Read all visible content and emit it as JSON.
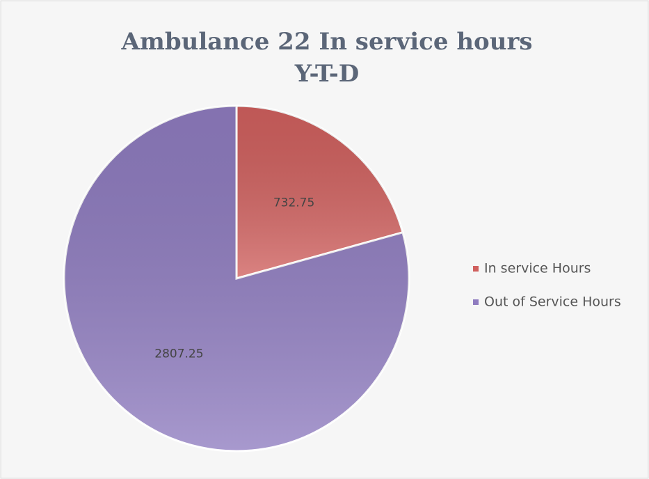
{
  "chart_data": {
    "type": "pie",
    "title": [
      "Ambulance 22 In service hours",
      "Y-T-D"
    ],
    "categories": [
      "In service Hours",
      "Out of Service Hours"
    ],
    "values": [
      732.75,
      2807.25
    ],
    "colors": [
      "#d0605e",
      "#8f7cc0"
    ],
    "legend": "right"
  }
}
